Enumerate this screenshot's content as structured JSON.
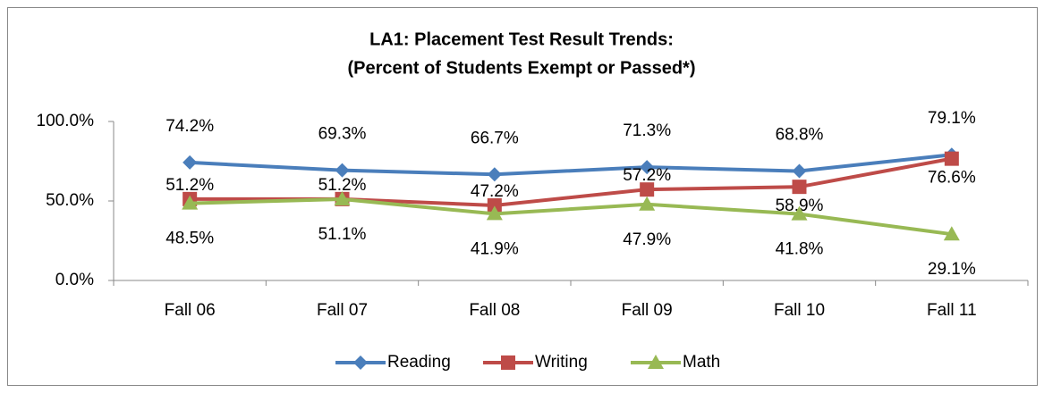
{
  "chart_data": {
    "type": "line",
    "title": [
      "LA1: Placement Test Result Trends:",
      "(Percent of Students Exempt or Passed*)"
    ],
    "categories": [
      "Fall 06",
      "Fall 07",
      "Fall 08",
      "Fall 09",
      "Fall 10",
      "Fall 11"
    ],
    "series": [
      {
        "name": "Reading",
        "color": "#4a7ebb",
        "values": [
          74.2,
          69.3,
          66.7,
          71.3,
          68.8,
          79.1
        ],
        "value_labels": [
          "74.2%",
          "69.3%",
          "66.7%",
          "71.3%",
          "68.8%",
          "79.1%"
        ]
      },
      {
        "name": "Writing",
        "color": "#be4b48",
        "values": [
          51.2,
          51.2,
          47.2,
          57.2,
          58.9,
          76.6
        ],
        "value_labels": [
          "51.2%",
          "51.2%",
          "47.2%",
          "57.2%",
          "58.9%",
          "76.6%"
        ]
      },
      {
        "name": "Math",
        "color": "#98b954",
        "values": [
          48.5,
          51.1,
          41.9,
          47.9,
          41.8,
          29.1
        ],
        "value_labels": [
          "48.5%",
          "51.1%",
          "41.9%",
          "47.9%",
          "41.8%",
          "29.1%"
        ]
      }
    ],
    "ylim": [
      0,
      100
    ],
    "yticks": [
      {
        "value": 0,
        "label": "0.0%"
      },
      {
        "value": 50,
        "label": "50.0%"
      },
      {
        "value": 100,
        "label": "100.0%"
      }
    ],
    "legend": "bottom"
  }
}
